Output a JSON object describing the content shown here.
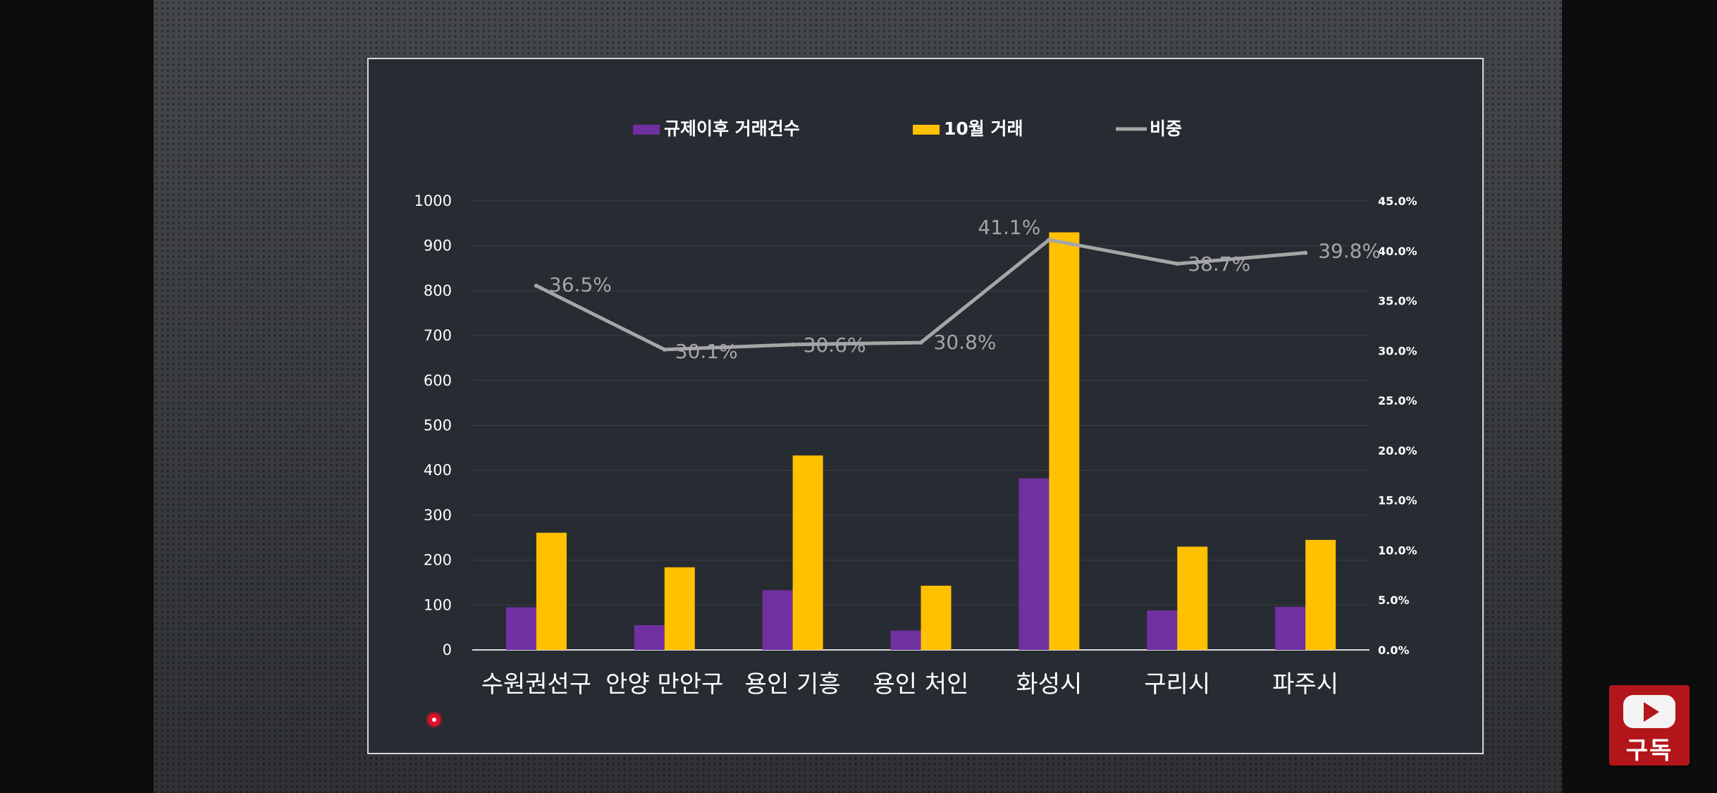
{
  "chart_data": {
    "type": "bar",
    "categories": [
      "수원권선구",
      "안양 만안구",
      "용인 기흥",
      "용인 처인",
      "화성시",
      "구리시",
      "파주시"
    ],
    "series": [
      {
        "name": "규제이후 거래건수",
        "type": "bar",
        "axis": "left",
        "color": "#7030a0",
        "values": [
          95,
          55,
          133,
          43,
          382,
          88,
          96
        ]
      },
      {
        "name": "10월 거래",
        "type": "bar",
        "axis": "left",
        "color": "#ffc000",
        "values": [
          261,
          184,
          433,
          143,
          930,
          230,
          245
        ]
      },
      {
        "name": "비중",
        "type": "line",
        "axis": "right",
        "color": "#a6a6a6",
        "values": [
          36.5,
          30.1,
          30.6,
          30.8,
          41.1,
          38.7,
          39.8
        ],
        "data_labels": [
          "36.5%",
          "30.1%",
          "30.6%",
          "30.8%",
          "41.1%",
          "38.7%",
          "39.8%"
        ]
      }
    ],
    "y_left": {
      "ticks": [
        "1000",
        "900",
        "800",
        "700",
        "600",
        "500",
        "400",
        "300",
        "200",
        "100",
        "0"
      ],
      "ylim": [
        0,
        1000
      ]
    },
    "y_right": {
      "ticks": [
        "45.0%",
        "40.0%",
        "35.0%",
        "30.0%",
        "25.0%",
        "20.0%",
        "15.0%",
        "10.0%",
        "5.0%",
        "0.0%"
      ],
      "ylim": [
        0,
        45
      ]
    },
    "legend": {
      "position": "top",
      "items": [
        "규제이후 거래건수",
        "10월 거래",
        "비중"
      ]
    },
    "grid": true,
    "title": "",
    "xlabel": "",
    "ylabel": ""
  },
  "subscribe": {
    "label": "구독",
    "icon": "youtube-play-icon"
  },
  "colors": {
    "background": "#272b32",
    "axis": "#d9d9d9",
    "grid": "#3a3f47",
    "tick_text": "#ffffff",
    "line_label": "#a6a6a6"
  }
}
